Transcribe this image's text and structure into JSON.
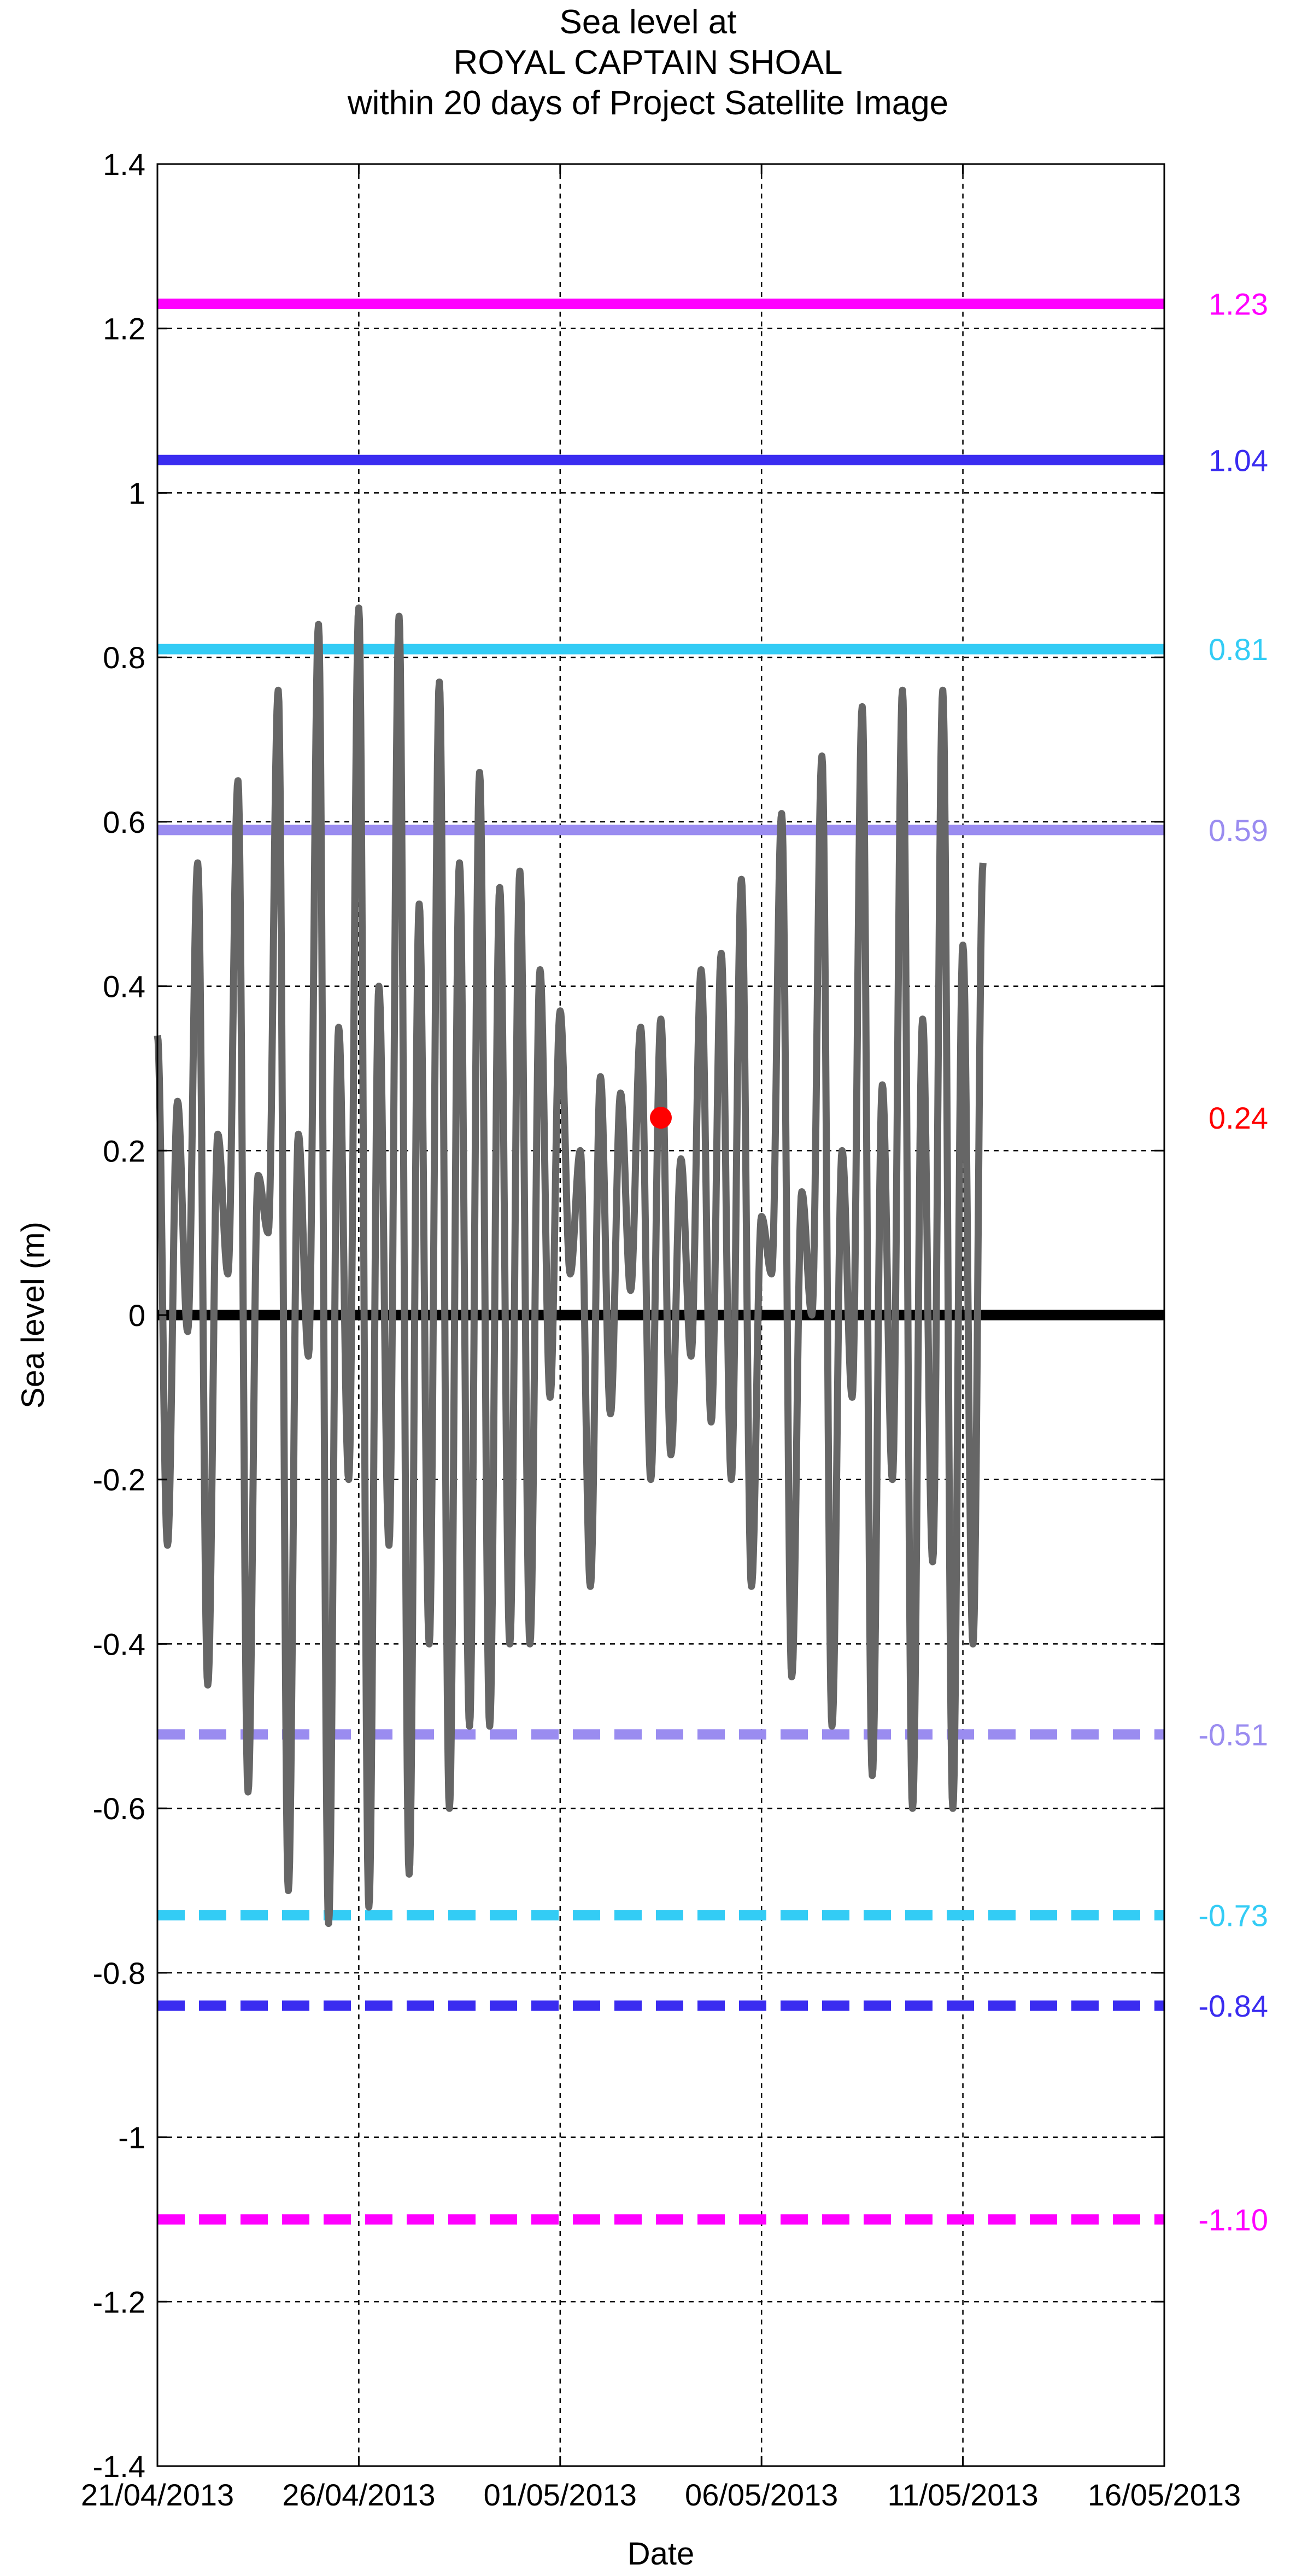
{
  "chart_data": {
    "type": "line",
    "title_lines": [
      "Sea level at",
      "ROYAL CAPTAIN SHOAL",
      "within 20 days of Project Satellite Image"
    ],
    "xlabel": "Date",
    "ylabel": "Sea level (m)",
    "ylim": [
      -1.4,
      1.4
    ],
    "xlim": [
      "21/04/2013",
      "16/05/2013"
    ],
    "yticks": [
      "1.4",
      "1.2",
      "1",
      "0.8",
      "0.6",
      "0.4",
      "0.2",
      "0",
      "-0.2",
      "-0.4",
      "-0.6",
      "-0.8",
      "-1",
      "-1.2",
      "-1.4"
    ],
    "xticks": [
      "21/04/2013",
      "26/04/2013",
      "01/05/2013",
      "06/05/2013",
      "11/05/2013",
      "16/05/2013"
    ],
    "grid": true,
    "reference_lines": [
      {
        "value": 1.23,
        "label": "1.23",
        "color": "#ff00ff",
        "style": "solid"
      },
      {
        "value": 1.04,
        "label": "1.04",
        "color": "#3a2cf0",
        "style": "solid"
      },
      {
        "value": 0.81,
        "label": "0.81",
        "color": "#33ccf5",
        "style": "solid"
      },
      {
        "value": 0.59,
        "label": "0.59",
        "color": "#9a8cf0",
        "style": "solid"
      },
      {
        "value": 0,
        "label": "",
        "color": "#000000",
        "style": "solid"
      },
      {
        "value": -0.51,
        "label": "-0.51",
        "color": "#9a8cf0",
        "style": "dashed"
      },
      {
        "value": -0.73,
        "label": "-0.73",
        "color": "#33ccf5",
        "style": "dashed"
      },
      {
        "value": -0.84,
        "label": "-0.84",
        "color": "#3a2cf0",
        "style": "dashed"
      },
      {
        "value": -1.1,
        "label": "-1.10",
        "color": "#ff00ff",
        "style": "dashed"
      }
    ],
    "marker": {
      "date": "03/05/2013",
      "day_fraction": 0.5,
      "value": 0.24,
      "label": "0.24",
      "color": "#ff0000"
    },
    "series": [
      {
        "color": "#666666",
        "start_date": "21/04/2013",
        "step_days": 0.25,
        "values": [
          0.34,
          -0.28,
          0.26,
          -0.02,
          0.55,
          -0.45,
          0.22,
          0.05,
          0.65,
          -0.58,
          0.17,
          0.1,
          0.76,
          -0.7,
          0.22,
          -0.05,
          0.84,
          -0.74,
          0.35,
          -0.2,
          0.86,
          -0.72,
          0.4,
          -0.28,
          0.85,
          -0.68,
          0.5,
          -0.4,
          0.77,
          -0.6,
          0.55,
          -0.5,
          0.66,
          -0.5,
          0.52,
          -0.4,
          0.54,
          -0.4,
          0.42,
          -0.1,
          0.37,
          0.05,
          0.2,
          -0.33,
          0.29,
          -0.12,
          0.27,
          0.03,
          0.35,
          -0.2,
          0.36,
          -0.17,
          0.19,
          -0.05,
          0.42,
          -0.13,
          0.44,
          -0.2,
          0.53,
          -0.33,
          0.12,
          0.05,
          0.61,
          -0.44,
          0.15,
          0.0,
          0.68,
          -0.5,
          0.2,
          -0.1,
          0.74,
          -0.56,
          0.28,
          -0.2,
          0.76,
          -0.6,
          0.36,
          -0.3,
          0.76,
          -0.6,
          0.45,
          -0.4,
          0.55
        ]
      }
    ]
  }
}
